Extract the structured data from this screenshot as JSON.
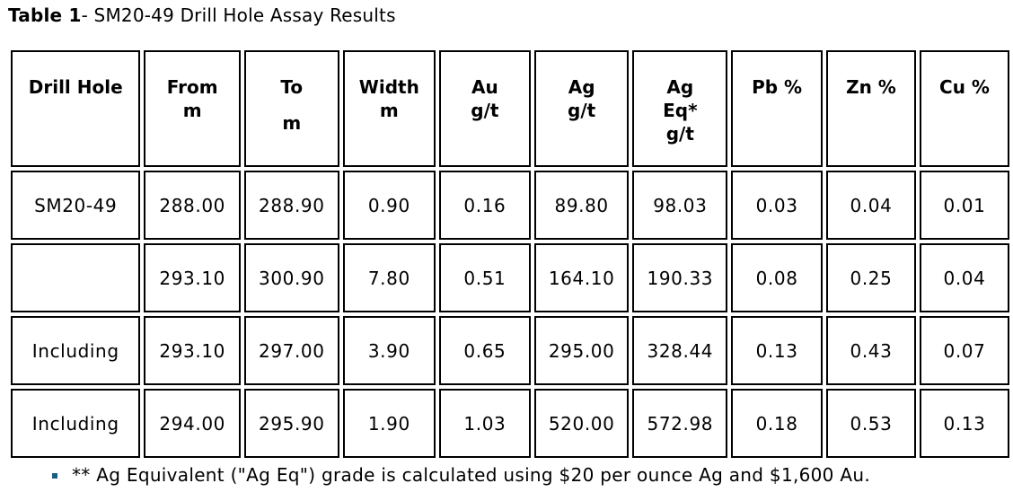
{
  "caption": {
    "bold": "Table 1",
    "rest": "- SM20-49 Drill Hole Assay Results"
  },
  "headers": [
    [
      "Drill Hole"
    ],
    [
      "From",
      "m"
    ],
    [
      "To",
      "",
      "m"
    ],
    [
      "Width",
      "m"
    ],
    [
      "Au",
      "g/t"
    ],
    [
      "Ag",
      "g/t"
    ],
    [
      "Ag",
      "Eq*",
      "g/t"
    ],
    [
      "Pb %"
    ],
    [
      "Zn %"
    ],
    [
      "Cu %"
    ]
  ],
  "rows": [
    [
      "SM20-49",
      "288.00",
      "288.90",
      "0.90",
      "0.16",
      "89.80",
      "98.03",
      "0.03",
      "0.04",
      "0.01"
    ],
    [
      "",
      "293.10",
      "300.90",
      "7.80",
      "0.51",
      "164.10",
      "190.33",
      "0.08",
      "0.25",
      "0.04"
    ],
    [
      "Including",
      "293.10",
      "297.00",
      "3.90",
      "0.65",
      "295.00",
      "328.44",
      "0.13",
      "0.43",
      "0.07"
    ],
    [
      "Including",
      "294.00",
      "295.90",
      "1.90",
      "1.03",
      "520.00",
      "572.98",
      "0.18",
      "0.53",
      "0.13"
    ]
  ],
  "footnote": "** Ag Equivalent (\"Ag Eq\") grade is calculated using $20 per ounce Ag and $1,600 Au.",
  "colors": {
    "bullet": "#1b5c84"
  }
}
